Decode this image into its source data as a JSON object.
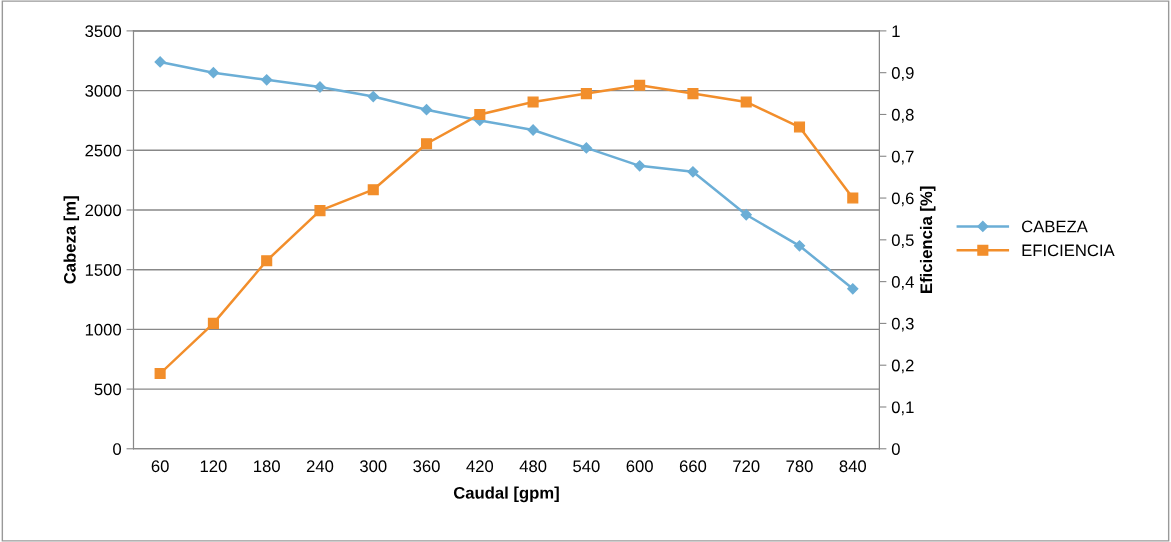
{
  "chart_data": {
    "type": "line",
    "categories": [
      "60",
      "120",
      "180",
      "240",
      "300",
      "360",
      "420",
      "480",
      "540",
      "600",
      "660",
      "720",
      "780",
      "840"
    ],
    "xlabel": "Caudal [gpm]",
    "ylabel": "Cabeza [m]",
    "y2label": "Eficiencia [%]",
    "series": [
      {
        "name": "CABEZA",
        "color": "#6baed6",
        "marker": "diamond",
        "values": [
          3240,
          3150,
          3090,
          3030,
          2950,
          2840,
          2750,
          2670,
          2520,
          2370,
          2320,
          1960,
          1700,
          1340
        ]
      },
      {
        "name": "EFICIENCIA",
        "color": "#f28e2b",
        "marker": "square",
        "axis": "y2",
        "values": [
          0.18,
          0.3,
          0.45,
          0.57,
          0.62,
          0.73,
          0.8,
          0.83,
          0.85,
          0.87,
          0.85,
          0.83,
          0.77,
          0.6
        ]
      }
    ],
    "ylim": [
      0,
      3500
    ],
    "yticks": [
      0,
      500,
      1000,
      1500,
      2000,
      2500,
      3000,
      3500
    ],
    "y2lim": [
      0,
      1
    ],
    "y2ticks": [
      0,
      {
        "value": 0.1,
        "label": "0,1"
      },
      {
        "value": 0.2,
        "label": "0,2"
      },
      {
        "value": 0.3,
        "label": "0,3"
      },
      {
        "value": 0.4,
        "label": "0,4"
      },
      {
        "value": 0.5,
        "label": "0,5"
      },
      {
        "value": 0.6,
        "label": "0,6"
      },
      {
        "value": 0.7,
        "label": "0,7"
      },
      {
        "value": 0.8,
        "label": "0,8"
      },
      {
        "value": 0.9,
        "label": "0,9"
      },
      1
    ],
    "grid": "y",
    "legend": "right"
  }
}
